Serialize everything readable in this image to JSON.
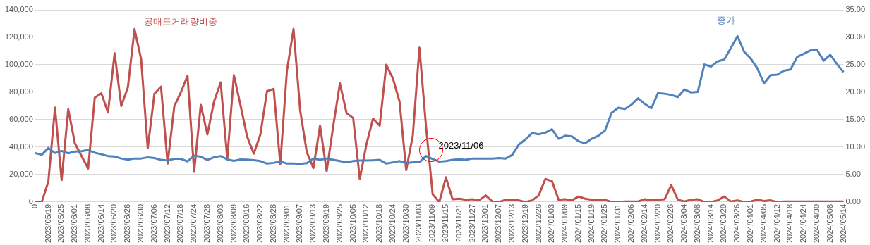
{
  "chart_data": {
    "type": "line",
    "categories": [
      "0",
      null,
      "2023/05/19",
      null,
      "2023/05/25",
      null,
      "2023/06/01",
      null,
      "2023/06/08",
      null,
      "2023/06/14",
      null,
      "2023/06/20",
      null,
      "2023/06/26",
      null,
      "2023/06/30",
      null,
      "2023/07/06",
      null,
      "2023/07/12",
      null,
      "2023/07/18",
      null,
      "2023/07/24",
      null,
      "2023/07/28",
      null,
      "2023/08/03",
      null,
      "2023/08/09",
      null,
      "2023/08/16",
      null,
      "2023/08/22",
      null,
      "2023/08/28",
      null,
      "2023/09/01",
      null,
      "2023/09/07",
      null,
      "2023/09/13",
      null,
      "2023/09/19",
      null,
      "2023/09/25",
      null,
      "2023/10/05",
      null,
      "2023/10/12",
      null,
      "2023/10/18",
      null,
      "2023/10/24",
      null,
      "2023/10/30",
      null,
      "2023/11/03",
      null,
      "2023/11/09",
      null,
      "2023/11/15",
      null,
      "2023/11/21",
      null,
      "2023/11/27",
      null,
      "2023/12/01",
      null,
      "2023/12/07",
      null,
      "2023/12/13",
      null,
      "2023/12/19",
      null,
      "2023/12/26",
      null,
      "2024/01/03",
      null,
      "2024/01/09",
      null,
      "2024/01/15",
      null,
      "2024/01/19",
      null,
      "2024/01/25",
      null,
      "2024/01/31",
      null,
      "2024/02/06",
      null,
      "2024/02/14",
      null,
      "2024/02/20",
      null,
      "2024/02/26",
      null,
      "2024/03/04",
      null,
      "2024/03/08",
      null,
      "2024/03/14",
      null,
      "2024/03/20",
      null,
      "2024/03/26",
      null,
      "2024/04/01",
      null,
      "2024/04/05",
      null,
      "2024/04/12",
      null,
      "2024/04/18",
      null,
      "2024/04/24",
      null,
      "2024/04/30",
      null,
      "2024/05/08",
      null,
      "2024/05/14"
    ],
    "series": [
      {
        "name": "종가",
        "color": "#4f81bd",
        "axis": "y",
        "values": [
          35700,
          34400,
          39400,
          35700,
          37200,
          35500,
          36800,
          37000,
          37900,
          35900,
          34800,
          33500,
          33200,
          31700,
          30900,
          31700,
          31700,
          32600,
          32000,
          30700,
          30300,
          31500,
          31500,
          29600,
          33900,
          33000,
          30700,
          32600,
          33500,
          31000,
          30000,
          31000,
          30900,
          30500,
          29800,
          28000,
          28500,
          29600,
          28000,
          28000,
          27800,
          28300,
          31700,
          30700,
          31700,
          30700,
          29800,
          28900,
          29800,
          30200,
          30200,
          30400,
          30700,
          28000,
          28900,
          29800,
          28300,
          28900,
          28900,
          33500,
          31300,
          29400,
          29800,
          30700,
          31100,
          30700,
          31700,
          31700,
          31700,
          31700,
          32000,
          31700,
          34300,
          41900,
          45600,
          50200,
          49300,
          50600,
          53000,
          46100,
          48300,
          47800,
          44300,
          42800,
          46100,
          48300,
          52000,
          65000,
          68700,
          67800,
          70900,
          75600,
          71500,
          68300,
          79400,
          78900,
          78000,
          76500,
          82000,
          79800,
          80200,
          100200,
          98700,
          102400,
          103900,
          112200,
          120900,
          109500,
          104500,
          97400,
          86300,
          92400,
          92800,
          95600,
          96500,
          105700,
          108000,
          110400,
          110900,
          103000,
          107200,
          100600,
          94600
        ]
      },
      {
        "name": "공매도거래량비중",
        "color": "#c0504d",
        "axis": "y2",
        "values": [
          0,
          0,
          3.75,
          17.2,
          4.0,
          16.9,
          10.7,
          8.4,
          6.1,
          19.0,
          19.8,
          16.3,
          27.1,
          17.5,
          20.9,
          31.5,
          26.0,
          9.8,
          19.7,
          21.0,
          7.0,
          17.4,
          20.0,
          23.0,
          5.5,
          17.7,
          12.3,
          18.3,
          21.8,
          7.9,
          23.1,
          17.6,
          11.9,
          8.8,
          12.3,
          20.2,
          20.6,
          6.9,
          23.9,
          31.5,
          16.7,
          9.1,
          6.2,
          13.9,
          5.6,
          13.9,
          21.6,
          16.2,
          15.3,
          4.2,
          10.5,
          15.2,
          13.9,
          25.0,
          22.5,
          18.3,
          5.8,
          12.1,
          28.1,
          13.7,
          1.4,
          0,
          4.5,
          0.5,
          0.6,
          0.4,
          0.5,
          0.3,
          1.2,
          0.1,
          0,
          0.4,
          0.4,
          0.3,
          0,
          0.3,
          1.2,
          4.2,
          3.8,
          0.4,
          0.5,
          0.3,
          1.0,
          0.6,
          0.4,
          0.4,
          0.4,
          0,
          0,
          0.1,
          0.1,
          0.1,
          0.5,
          0.3,
          0.4,
          0.5,
          3.1,
          0.4,
          0.1,
          0.4,
          0.5,
          0,
          0,
          0.3,
          1.0,
          0.1,
          0.3,
          0,
          0.1,
          0.4,
          0.2,
          0.3,
          0,
          0.1,
          0.1,
          0.1,
          0.1,
          0.1,
          0.1,
          0.1,
          0.1,
          0.1,
          0.1
        ]
      }
    ],
    "ylim": [
      0,
      140000
    ],
    "yticks": [
      {
        "value": 0,
        "label": "0"
      },
      {
        "value": 20000,
        "label": "20,000"
      },
      {
        "value": 40000,
        "label": "40,000"
      },
      {
        "value": 60000,
        "label": "60,000"
      },
      {
        "value": 80000,
        "label": "80,000"
      },
      {
        "value": 100000,
        "label": "100,000"
      },
      {
        "value": 120000,
        "label": "120,000"
      },
      {
        "value": 140000,
        "label": "140,000"
      }
    ],
    "y2lim": [
      0,
      35
    ],
    "y2ticks": [
      {
        "value": 0,
        "label": "0.00"
      },
      {
        "value": 5,
        "label": "5.00"
      },
      {
        "value": 10,
        "label": "10.00"
      },
      {
        "value": 15,
        "label": "15.00"
      },
      {
        "value": 20,
        "label": "20.00"
      },
      {
        "value": 25,
        "label": "25.00"
      },
      {
        "value": 30,
        "label": "30.00"
      },
      {
        "value": 35,
        "label": "35.00"
      }
    ],
    "annotations": [
      "2023/11/06"
    ],
    "grid": "y",
    "legend": false,
    "marker": "none",
    "line_style": "solid"
  }
}
